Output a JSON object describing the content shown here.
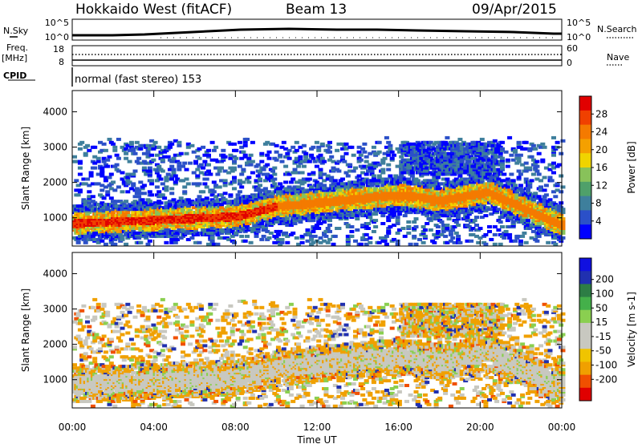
{
  "header": {
    "station": "Hokkaido West (fitACF)",
    "beam": "Beam 13",
    "date": "09/Apr/2015"
  },
  "strip": {
    "nsky_label": "N.Sky",
    "nsky_ticks": [
      "10^5",
      "10^0"
    ],
    "nsearch_ticks": [
      "10^5",
      "10^0"
    ],
    "nsearch_label": "N.Search",
    "freq_label": "Freq.",
    "freq_unit": "[MHz]",
    "freq_ticks": [
      "18",
      "8"
    ],
    "nave_ticks": [
      "60",
      "0"
    ],
    "nave_label": "Nave",
    "cpid_label": "CPID",
    "cpid_text": "normal (fast stereo) 153"
  },
  "colors": {
    "power_bar": [
      "#0000ff",
      "#2b50c8",
      "#3e7f9c",
      "#4fa06a",
      "#88c25a",
      "#f0d400",
      "#f4a000",
      "#f47a00",
      "#f04000",
      "#e10000"
    ],
    "velocity_bar": [
      "#e00000",
      "#f05000",
      "#f0a000",
      "#f0c400",
      "#c8c8c0",
      "#c8c8c0",
      "#8acf50",
      "#44b04a",
      "#2d7d45",
      "#2030b0",
      "#1010e0"
    ]
  },
  "chart_data": [
    {
      "type": "heatmap",
      "name": "power",
      "ylabel": "Slant Range [km]",
      "y_ticks": [
        "1000",
        "2000",
        "3000",
        "4000"
      ],
      "ylim": [
        200,
        4600
      ],
      "x_ticks": [
        "00:00",
        "04:00",
        "08:00",
        "12:00",
        "16:00",
        "20:00",
        "00:00"
      ],
      "xlim": [
        0,
        24
      ],
      "colorbar": {
        "label": "Power [dB]",
        "ticks": [
          "4",
          "8",
          "12",
          "16",
          "20",
          "24",
          "28"
        ],
        "range": [
          0,
          32
        ]
      }
    },
    {
      "type": "heatmap",
      "name": "velocity",
      "ylabel": "Slant Range [km]",
      "y_ticks": [
        "1000",
        "2000",
        "3000",
        "4000"
      ],
      "ylim": [
        200,
        4600
      ],
      "x_ticks": [
        "00:00",
        "04:00",
        "08:00",
        "12:00",
        "16:00",
        "20:00",
        "00:00"
      ],
      "xlim": [
        0,
        24
      ],
      "xlabel": "Time UT",
      "colorbar": {
        "label": "Velocity [m s-1]",
        "ticks": [
          "200",
          "100",
          "50",
          "15",
          "-15",
          "-50",
          "-100",
          "-200"
        ]
      }
    }
  ]
}
